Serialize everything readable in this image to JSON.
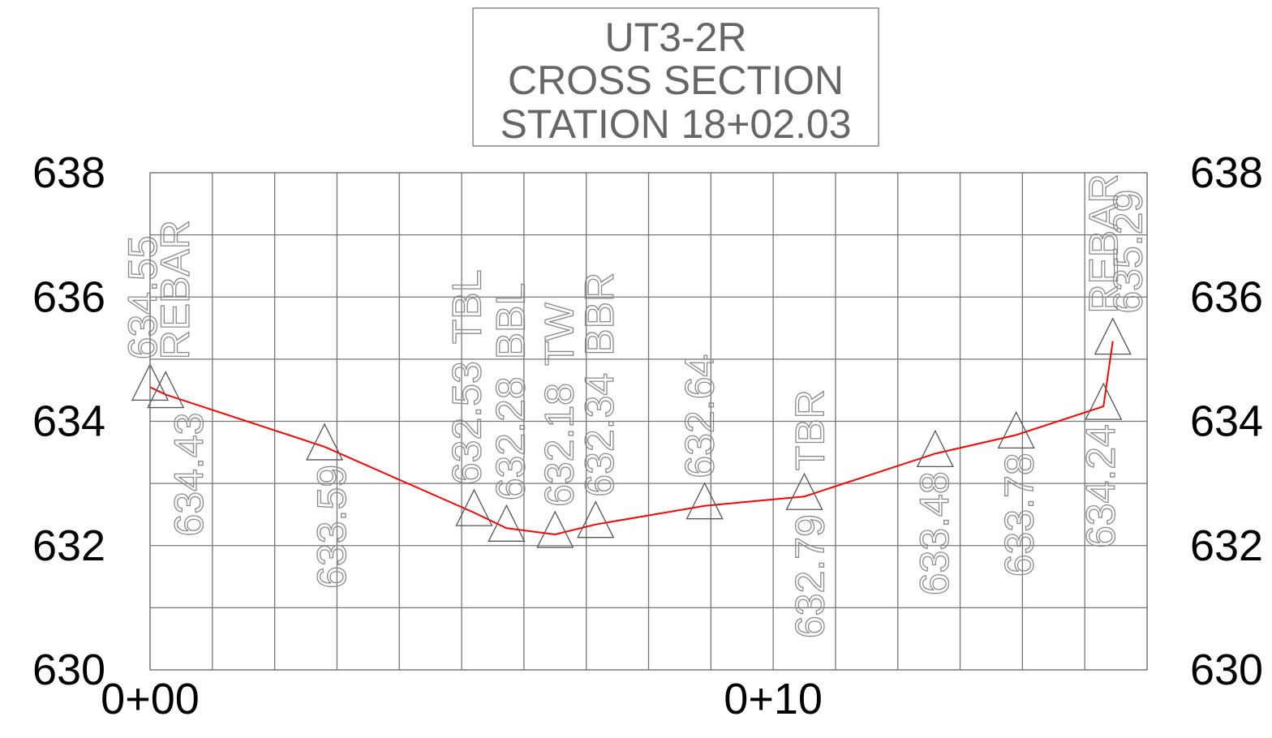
{
  "chart_data": {
    "type": "line",
    "title": [
      "UT3-2R",
      "CROSS SECTION",
      "STATION 18+02.03"
    ],
    "x": [
      0,
      0.25,
      2.8,
      5.2,
      5.72,
      6.5,
      7.15,
      8.9,
      10.5,
      12.6,
      13.9,
      15.3,
      15.45
    ],
    "series": [
      {
        "color": "#ff0000",
        "values": [
          634.55,
          634.43,
          633.59,
          632.53,
          632.28,
          632.18,
          632.34,
          632.64,
          632.79,
          633.48,
          633.78,
          634.24,
          635.29
        ]
      }
    ],
    "point_descriptions": [
      "REBAR",
      null,
      null,
      "TBL",
      "BBL",
      "TW",
      "BBR",
      null,
      "TBR",
      null,
      null,
      null,
      "REBAR"
    ],
    "xlim": [
      0,
      16
    ],
    "ylim": [
      630,
      638
    ],
    "xticks": [
      {
        "value": 0,
        "label": "0+00"
      },
      {
        "value": 10,
        "label": "0+10"
      }
    ],
    "yticks": [
      630,
      632,
      634,
      636,
      638
    ],
    "xgrid": [
      0,
      1,
      2,
      3,
      4,
      5,
      6,
      7,
      8,
      9,
      10,
      11,
      12,
      13,
      14,
      15,
      16
    ],
    "ygrid": [
      630,
      631,
      632,
      633,
      634,
      635,
      636,
      637,
      638
    ],
    "grid": true,
    "marker_color": "#555555",
    "grid_color": "#777777"
  }
}
